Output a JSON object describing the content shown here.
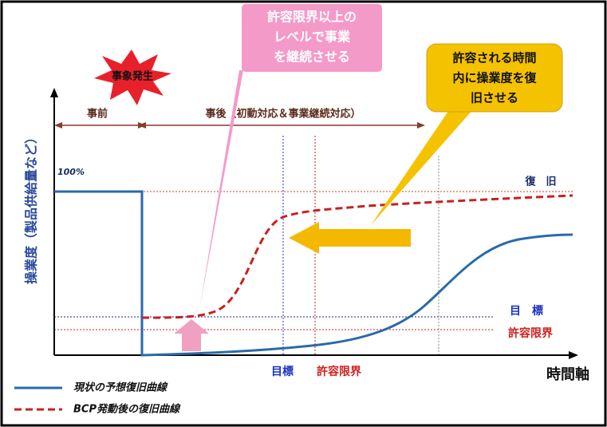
{
  "event": "事象発生",
  "callouts": {
    "pink": {
      "lines": [
        "許容限界以上の",
        "レベルで事業",
        "を継続させる"
      ]
    },
    "yellow": {
      "lines": [
        "許容される時間",
        "内に操業度を復",
        "旧させる"
      ]
    }
  },
  "phases": {
    "before": "事前",
    "after": "事後（初動対応＆事業継続対応）"
  },
  "y_axis": {
    "label": "操業度（製品供給量など）",
    "top_label": "100%"
  },
  "levels": {
    "recovery": "復　旧",
    "target": "目　標",
    "tolerance": "許容限界"
  },
  "x_axis": {
    "label": "時間軸",
    "target": "目標",
    "tolerance": "許容限界"
  },
  "legend": {
    "current": "現状の予想復旧曲線",
    "bcp": "BCP発動後の復旧曲線"
  }
}
